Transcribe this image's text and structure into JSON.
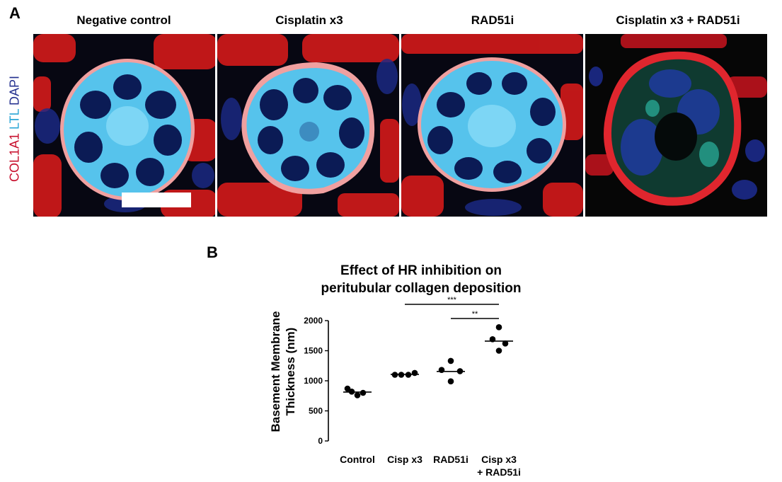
{
  "figure": {
    "panel_a_letter": "A",
    "panel_b_letter": "B",
    "stain_label": {
      "col1a1": "COL1A1",
      "ltl": "LTL",
      "dapi": "DAPI",
      "colors": {
        "col1a1": "#c8102e",
        "ltl": "#2aa6d6",
        "dapi": "#24318f"
      }
    },
    "image_titles": [
      "Negative control",
      "Cisplatin x3",
      "RAD51i",
      "Cisplatin x3 + RAD51i"
    ]
  },
  "chart_data": {
    "type": "scatter",
    "title_line1": "Effect of HR inhibition on",
    "title_line2": "peritubular collagen deposition",
    "ylabel_line1": "Basement Membrane",
    "ylabel_line2": "Thickness (nm)",
    "ylim": [
      0,
      2000
    ],
    "yticks": [
      0,
      500,
      1000,
      1500,
      2000
    ],
    "categories": [
      "Control",
      "Cisp x3",
      "RAD51i",
      "Cisp x3\n+ RAD51i"
    ],
    "category_lines": [
      [
        "Control"
      ],
      [
        "Cisp x3"
      ],
      [
        "RAD51i"
      ],
      [
        "Cisp x3",
        "+ RAD51i"
      ]
    ],
    "groups": [
      {
        "name": "Control",
        "points": [
          870,
          820,
          800,
          760
        ],
        "mean": 812
      },
      {
        "name": "Cisp x3",
        "points": [
          1100,
          1100,
          1100,
          1130
        ],
        "mean": 1107
      },
      {
        "name": "RAD51i",
        "points": [
          1330,
          1180,
          1160,
          990
        ],
        "mean": 1155
      },
      {
        "name": "Cisp x3 + RAD51i",
        "points": [
          1890,
          1690,
          1620,
          1500
        ],
        "mean": 1660
      }
    ],
    "significance": [
      {
        "from": 1,
        "to": 3,
        "label": "***"
      },
      {
        "from": 2,
        "to": 3,
        "label": "**"
      }
    ],
    "marker_color": "#000000"
  }
}
